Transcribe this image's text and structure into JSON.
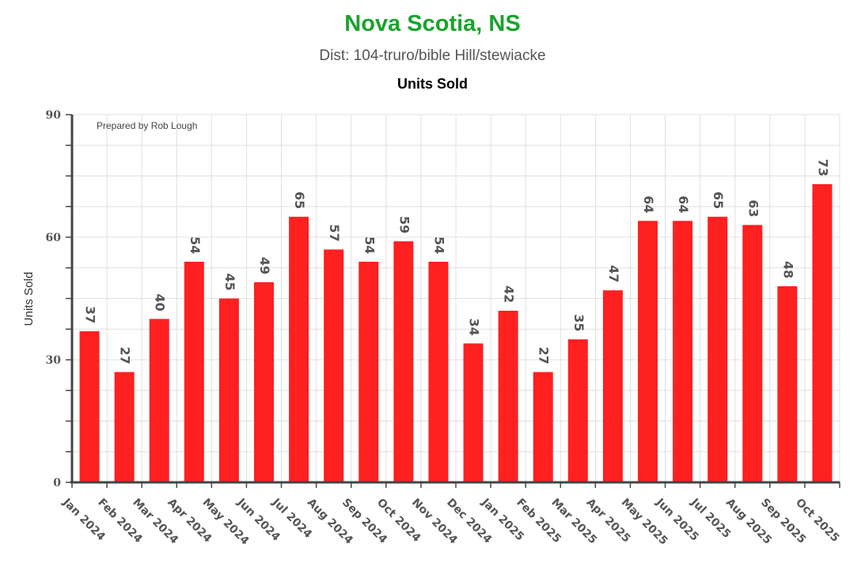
{
  "header": {
    "title": "Nova Scotia, NS",
    "subtitle": "Dist: 104-truro/bible Hill/stewiacke",
    "metric": "Units Sold"
  },
  "colors": {
    "title": "#1aa32e",
    "bar": "#ff2020",
    "grid": "#e0e0e0",
    "axis": "#444444"
  },
  "chart_data": {
    "type": "bar",
    "title": "Units Sold",
    "ylabel": "Units Sold",
    "xlabel": "",
    "credit": "Prepared by Rob Lough",
    "ylim": [
      0,
      90
    ],
    "yticks": [
      0,
      30,
      60,
      90
    ],
    "grid": true,
    "categories": [
      "Jan 2024",
      "Feb 2024",
      "Mar 2024",
      "Apr 2024",
      "May 2024",
      "Jun 2024",
      "Jul 2024",
      "Aug 2024",
      "Sep 2024",
      "Oct 2024",
      "Nov 2024",
      "Dec 2024",
      "Jan 2025",
      "Feb 2025",
      "Mar 2025",
      "Apr 2025",
      "May 2025",
      "Jun 2025",
      "Jul 2025",
      "Aug 2025",
      "Sep 2025",
      "Oct 2025"
    ],
    "values": [
      37,
      27,
      40,
      54,
      45,
      49,
      65,
      57,
      54,
      59,
      54,
      34,
      42,
      27,
      35,
      47,
      64,
      64,
      65,
      63,
      48,
      73
    ]
  }
}
